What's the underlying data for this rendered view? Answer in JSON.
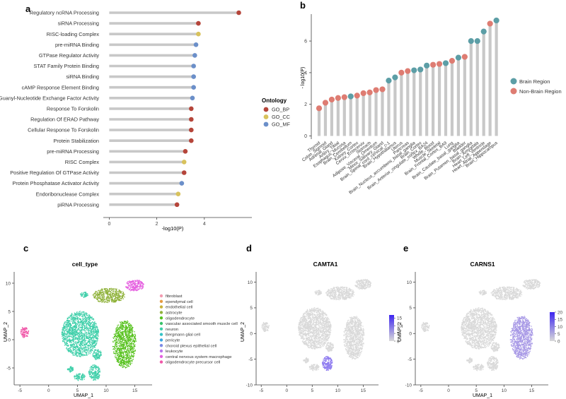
{
  "panels": {
    "a": "a",
    "b": "b",
    "c": "c",
    "d": "d",
    "e": "e"
  },
  "colors": {
    "GO_BP": "#b5453a",
    "GO_CC": "#d8c25c",
    "GO_MF": "#6b8fc9",
    "brain": "#5c9ea6",
    "nonbrain": "#de7c72",
    "stem": "#c8c8c8",
    "featlow": "#d9d9d9",
    "feathigh": "#3d25f0"
  },
  "chart_data": [
    {
      "id": "a",
      "type": "lollipop",
      "orientation": "horizontal",
      "xlabel": "-log10(P)",
      "xticks": [
        0,
        2,
        4
      ],
      "xlim": [
        -0.25,
        6.0
      ],
      "legend": {
        "title": "Ontology",
        "entries": [
          "GO_BP",
          "GO_CC",
          "GO_MF"
        ],
        "position": "right"
      },
      "points": [
        {
          "term": "Regulatory ncRNA Processing",
          "value": 5.45,
          "ontology": "GO_BP"
        },
        {
          "term": "siRNA Processing",
          "value": 3.75,
          "ontology": "GO_BP"
        },
        {
          "term": "RISC-loading Complex",
          "value": 3.75,
          "ontology": "GO_CC"
        },
        {
          "term": "pre-miRNA Binding",
          "value": 3.65,
          "ontology": "GO_MF"
        },
        {
          "term": "GTPase Regulator Activity",
          "value": 3.6,
          "ontology": "GO_MF"
        },
        {
          "term": "STAT Family Protein Binding",
          "value": 3.55,
          "ontology": "GO_MF"
        },
        {
          "term": "siRNA Binding",
          "value": 3.55,
          "ontology": "GO_MF"
        },
        {
          "term": "cAMP Response Element Binding",
          "value": 3.55,
          "ontology": "GO_MF"
        },
        {
          "term": "Guanyl-Nucleotide Exchange Factor Activity",
          "value": 3.5,
          "ontology": "GO_MF"
        },
        {
          "term": "Response To Forskolin",
          "value": 3.45,
          "ontology": "GO_BP"
        },
        {
          "term": "Regulation Of ERAD Pathway",
          "value": 3.45,
          "ontology": "GO_BP"
        },
        {
          "term": "Cellular Response To Forskolin",
          "value": 3.45,
          "ontology": "GO_BP"
        },
        {
          "term": "Protein Stabilization",
          "value": 3.45,
          "ontology": "GO_BP"
        },
        {
          "term": "pre-miRNA Processing",
          "value": 3.2,
          "ontology": "GO_BP"
        },
        {
          "term": "RISC Complex",
          "value": 3.15,
          "ontology": "GO_CC"
        },
        {
          "term": "Positive Regulation Of GTPase Activity",
          "value": 3.15,
          "ontology": "GO_BP"
        },
        {
          "term": "Protein Phosphatase Activator Activity",
          "value": 3.05,
          "ontology": "GO_MF"
        },
        {
          "term": "Endoribonuclease Complex",
          "value": 2.9,
          "ontology": "GO_CC"
        },
        {
          "term": "piRNA Processing",
          "value": 2.85,
          "ontology": "GO_BP"
        }
      ]
    },
    {
      "id": "b",
      "type": "lollipop",
      "orientation": "vertical",
      "ylabel": "- log10(P)",
      "yticks": [
        0,
        2,
        4,
        6
      ],
      "ylim": [
        -0.2,
        7.7
      ],
      "legend": {
        "entries": [
          "Brain Region",
          "Non-Brain Region"
        ],
        "position": "right"
      },
      "points": [
        {
          "tissue": "Thyroid",
          "value": 1.75,
          "group": "Non-Brain Region"
        },
        {
          "tissue": "Colon_Sigmoid",
          "value": 2.1,
          "group": "Non-Brain Region"
        },
        {
          "tissue": "Adrenal_Gland",
          "value": 2.3,
          "group": "Non-Brain Region"
        },
        {
          "tissue": "Artery_Tibial",
          "value": 2.4,
          "group": "Non-Brain Region"
        },
        {
          "tissue": "Esophagus_Mucosa",
          "value": 2.45,
          "group": "Non-Brain Region"
        },
        {
          "tissue": "Brain_Cerebellum",
          "value": 2.5,
          "group": "Brain Region"
        },
        {
          "tissue": "Kidney_Cortex",
          "value": 2.55,
          "group": "Non-Brain Region"
        },
        {
          "tissue": "Cervix_Ectocervix",
          "value": 2.7,
          "group": "Non-Brain Region"
        },
        {
          "tissue": "Stomach",
          "value": 2.75,
          "group": "Non-Brain Region"
        },
        {
          "tissue": "Adipose_Visceral_Omentum",
          "value": 2.9,
          "group": "Non-Brain Region"
        },
        {
          "tissue": "Minor_Salivary_Gland",
          "value": 2.95,
          "group": "Non-Brain Region"
        },
        {
          "tissue": "Brain_Spinal_cord_cervical_c-1",
          "value": 3.5,
          "group": "Brain Region"
        },
        {
          "tissue": "Brain_Hypothalamus",
          "value": 3.7,
          "group": "Brain Region"
        },
        {
          "tissue": "Uterus",
          "value": 4.0,
          "group": "Non-Brain Region"
        },
        {
          "tissue": "Pancreas",
          "value": 4.1,
          "group": "Non-Brain Region"
        },
        {
          "tissue": "Brain_Nucleus_accumbens_basal_ganglia",
          "value": 4.15,
          "group": "Brain Region"
        },
        {
          "tissue": "Brain_Cortex",
          "value": 4.2,
          "group": "Brain Region"
        },
        {
          "tissue": "Brain_Anterior_cingulate_cortex_BA24",
          "value": 4.45,
          "group": "Brain Region"
        },
        {
          "tissue": "Whole_Blood",
          "value": 4.5,
          "group": "Non-Brain Region"
        },
        {
          "tissue": "Muscle_Skeletal",
          "value": 4.55,
          "group": "Non-Brain Region"
        },
        {
          "tissue": "Brain_Frontal_Cortex_BA9",
          "value": 4.6,
          "group": "Brain Region"
        },
        {
          "tissue": "Lung",
          "value": 4.75,
          "group": "Non-Brain Region"
        },
        {
          "tissue": "Brain_Caudate_basal_ganglia",
          "value": 4.95,
          "group": "Brain Region"
        },
        {
          "tissue": "Bladder",
          "value": 5.0,
          "group": "Non-Brain Region"
        },
        {
          "tissue": "Brain_Putamen_basal_ganglia",
          "value": 6.0,
          "group": "Brain Region"
        },
        {
          "tissue": "Brain_Amygdala",
          "value": 6.0,
          "group": "Brain Region"
        },
        {
          "tissue": "Heart_Left_Ventricle",
          "value": 6.6,
          "group": "Brain Region"
        },
        {
          "tissue": "Heart_Atrial_Appendage",
          "value": 7.1,
          "group": "Non-Brain Region"
        },
        {
          "tissue": "Brain_Hippocampus",
          "value": 7.3,
          "group": "Brain Region"
        }
      ]
    },
    {
      "id": "c",
      "type": "scatter",
      "title": "cell_type",
      "xlabel": "UMAP_1",
      "ylabel": "UMAP_2",
      "xticks": [
        -5,
        0,
        5,
        10,
        15
      ],
      "yticks": [
        -5,
        0,
        5,
        10
      ],
      "xlim": [
        -6,
        18
      ],
      "ylim": [
        -8,
        12
      ],
      "legend": {
        "position": "right",
        "entries": [
          {
            "label": "fibroblast",
            "color": "#f39bb0"
          },
          {
            "label": "ependymal cell",
            "color": "#e69a40"
          },
          {
            "label": "endothelial cell",
            "color": "#c8b23a"
          },
          {
            "label": "astrocyte",
            "color": "#8fb23a"
          },
          {
            "label": "oligodendrocyte",
            "color": "#57c21e"
          },
          {
            "label": "vascular associated smooth muscle cell",
            "color": "#39c26a"
          },
          {
            "label": "neuron",
            "color": "#3ecfa9"
          },
          {
            "label": "Bergmann glial cell",
            "color": "#35c3c6"
          },
          {
            "label": "pericyte",
            "color": "#3aa6e2"
          },
          {
            "label": "choroid plexus epithelial cell",
            "color": "#7d8be6"
          },
          {
            "label": "leukocyte",
            "color": "#b875ec"
          },
          {
            "label": "central nervous system macrophage",
            "color": "#e560e0"
          },
          {
            "label": "oligodendrocyte precursor cell",
            "color": "#f057a8"
          }
        ]
      },
      "clusters": [
        {
          "cell_type": "neuron",
          "cx": 5.5,
          "cy": 1.0,
          "rx": 3.2,
          "ry": 4.0
        },
        {
          "cell_type": "oligodendrocyte",
          "cx": 13.2,
          "cy": -0.8,
          "rx": 2.0,
          "ry": 4.2
        },
        {
          "cell_type": "astrocyte",
          "cx": 10.5,
          "cy": 7.8,
          "rx": 2.8,
          "ry": 1.3
        },
        {
          "cell_type": "central nervous system macrophage",
          "cx": 15.0,
          "cy": 9.6,
          "rx": 1.6,
          "ry": 1.0
        },
        {
          "cell_type": "oligodendrocyte precursor cell",
          "cx": -4.2,
          "cy": 1.3,
          "rx": 0.7,
          "ry": 0.9
        },
        {
          "cell_type": "neuron",
          "cx": 8.0,
          "cy": -5.8,
          "rx": 1.0,
          "ry": 1.4
        },
        {
          "cell_type": "neuron",
          "cx": 5.4,
          "cy": -6.6,
          "rx": 1.0,
          "ry": 0.6
        },
        {
          "cell_type": "neuron",
          "cx": 3.8,
          "cy": -5.2,
          "rx": 0.5,
          "ry": 0.5
        },
        {
          "cell_type": "neuron",
          "cx": 8.4,
          "cy": -2.6,
          "rx": 0.8,
          "ry": 0.9
        },
        {
          "cell_type": "neuron",
          "cx": 6.2,
          "cy": 8.0,
          "rx": 0.6,
          "ry": 0.5
        }
      ]
    },
    {
      "id": "d",
      "type": "scatter",
      "title": "CAMTA1",
      "xlabel": "",
      "ylabel": "UMAP_2",
      "xticks": [
        -5,
        0,
        5,
        10,
        15
      ],
      "yticks": [
        -10,
        -5,
        0,
        5,
        10
      ],
      "xlim": [
        -6,
        18
      ],
      "ylim": [
        -10,
        12
      ],
      "colorbar": {
        "ticks": [
          0,
          5,
          10,
          15
        ],
        "range": [
          0,
          17
        ]
      },
      "high_expression": "neuron subcluster near (7.8, -6.5)"
    },
    {
      "id": "e",
      "type": "scatter",
      "title": "CARNS1",
      "xlabel": "UMAP_1",
      "ylabel": "UMAP_2",
      "xticks": [
        -5,
        0,
        5,
        10,
        15
      ],
      "yticks": [
        -10,
        -5,
        0,
        5,
        10
      ],
      "xlim": [
        -6,
        18
      ],
      "ylim": [
        -10,
        12
      ],
      "colorbar": {
        "ticks": [
          0,
          5,
          10,
          15,
          20
        ],
        "range": [
          0,
          20
        ]
      },
      "high_expression": "oligodendrocyte cluster near (13, -1)"
    }
  ]
}
